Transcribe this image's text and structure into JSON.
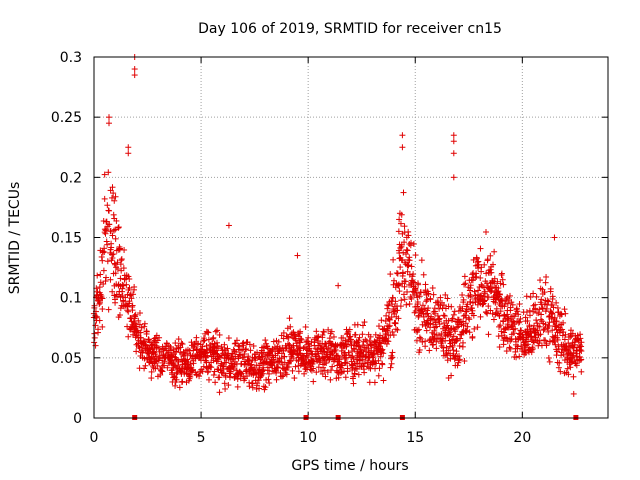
{
  "chart_data": {
    "type": "scatter",
    "title": "Day 106 of 2019, SRMTID for receiver cn15",
    "xlabel": "GPS time / hours",
    "ylabel": "SRMTID / TECUs",
    "xlim": [
      0,
      24
    ],
    "ylim": [
      0,
      0.3
    ],
    "x_ticks": [
      0,
      5,
      10,
      15,
      20
    ],
    "x_tick_labels": [
      "0",
      "5",
      "10",
      "15",
      "20"
    ],
    "y_ticks": [
      0,
      0.05,
      0.1,
      0.15,
      0.2,
      0.25,
      0.3
    ],
    "y_tick_labels": [
      "0",
      "0.05",
      "0.1",
      "0.15",
      "0.2",
      "0.25",
      "0.3"
    ],
    "grid": true,
    "marker": "plus",
    "series_color": "#e00000",
    "zero_markers_x": [
      1.9,
      9.9,
      11.4,
      14.4,
      22.5
    ],
    "profile": {
      "description": "Approximate density envelope of the scatter: at each hour x, points span roughly [low, high] with typical value mid and peak outliers.",
      "x": [
        0.0,
        0.25,
        0.5,
        0.75,
        1.0,
        1.25,
        1.5,
        1.75,
        2.0,
        2.5,
        3.0,
        3.5,
        4.0,
        4.5,
        5.0,
        5.5,
        6.0,
        6.5,
        7.0,
        7.5,
        8.0,
        8.5,
        9.0,
        9.5,
        10.0,
        10.5,
        11.0,
        11.5,
        12.0,
        12.5,
        13.0,
        13.5,
        14.0,
        14.25,
        14.5,
        14.75,
        15.0,
        15.5,
        16.0,
        16.5,
        17.0,
        17.5,
        18.0,
        18.5,
        19.0,
        19.5,
        20.0,
        20.5,
        21.0,
        21.5,
        22.0,
        22.5,
        22.8
      ],
      "mid": [
        0.08,
        0.1,
        0.14,
        0.16,
        0.14,
        0.12,
        0.1,
        0.09,
        0.07,
        0.055,
        0.05,
        0.05,
        0.045,
        0.045,
        0.05,
        0.055,
        0.045,
        0.045,
        0.045,
        0.04,
        0.045,
        0.05,
        0.055,
        0.06,
        0.05,
        0.055,
        0.055,
        0.05,
        0.055,
        0.055,
        0.055,
        0.06,
        0.09,
        0.12,
        0.14,
        0.12,
        0.1,
        0.09,
        0.08,
        0.07,
        0.065,
        0.09,
        0.11,
        0.11,
        0.09,
        0.08,
        0.065,
        0.07,
        0.09,
        0.075,
        0.06,
        0.055,
        0.055
      ],
      "spread": [
        0.02,
        0.04,
        0.05,
        0.06,
        0.05,
        0.04,
        0.035,
        0.03,
        0.025,
        0.02,
        0.018,
        0.018,
        0.016,
        0.016,
        0.02,
        0.022,
        0.02,
        0.02,
        0.02,
        0.02,
        0.02,
        0.022,
        0.025,
        0.025,
        0.02,
        0.02,
        0.02,
        0.02,
        0.022,
        0.022,
        0.025,
        0.028,
        0.04,
        0.05,
        0.05,
        0.04,
        0.035,
        0.035,
        0.03,
        0.028,
        0.03,
        0.035,
        0.035,
        0.035,
        0.03,
        0.028,
        0.025,
        0.03,
        0.035,
        0.03,
        0.025,
        0.02,
        0.02
      ],
      "outliers": [
        [
          1.9,
          0.3
        ],
        [
          1.9,
          0.29
        ],
        [
          1.9,
          0.285
        ],
        [
          0.7,
          0.25
        ],
        [
          0.7,
          0.245
        ],
        [
          1.6,
          0.225
        ],
        [
          1.6,
          0.22
        ],
        [
          14.4,
          0.235
        ],
        [
          14.4,
          0.225
        ],
        [
          16.8,
          0.235
        ],
        [
          16.8,
          0.23
        ],
        [
          16.8,
          0.22
        ],
        [
          16.8,
          0.2
        ],
        [
          6.3,
          0.16
        ],
        [
          9.5,
          0.135
        ],
        [
          11.4,
          0.11
        ],
        [
          21.5,
          0.15
        ],
        [
          22.4,
          0.02
        ]
      ]
    }
  }
}
